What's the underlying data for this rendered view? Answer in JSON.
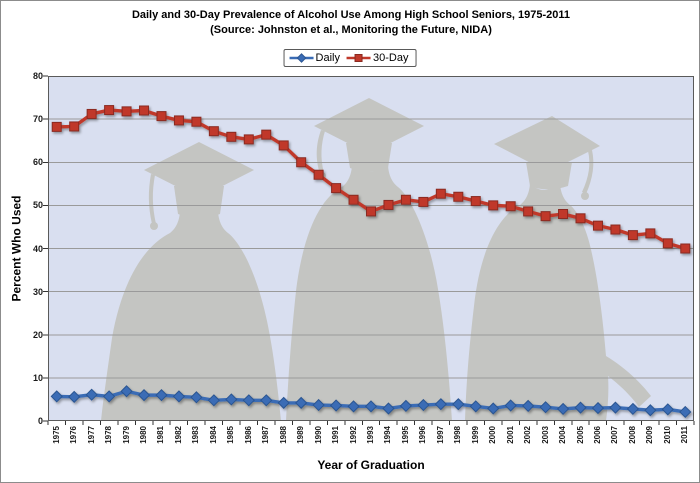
{
  "title": {
    "line1": "Daily and 30-Day Prevalence of Alcohol Use Among High School Seniors, 1975-2011",
    "line2": "(Source:  Johnston et al., Monitoring the Future, NIDA)"
  },
  "colors": {
    "plot_background": "#d9dff0",
    "silhouette": "#c4c5c2",
    "gridline": "#9a9a9a",
    "plot_border": "#5a5a5a",
    "tick": "#333333",
    "daily_line": "#3a6cb5",
    "daily_marker_edge": "#2b5591",
    "thirty_day_line": "#c0392b",
    "thirty_day_marker_edge": "#8a2a20"
  },
  "chart_data": {
    "type": "line",
    "title": "Daily and 30-Day Prevalence of Alcohol Use Among High School Seniors, 1975-2011",
    "subtitle": "(Source:  Johnston et al., Monitoring the Future, NIDA)",
    "xlabel": "Year of Graduation",
    "ylabel": "Percent Who Used",
    "ylim": [
      0,
      80
    ],
    "yticks": [
      0,
      10,
      20,
      30,
      40,
      50,
      60,
      70,
      80
    ],
    "grid": true,
    "legend_position": "top",
    "categories": [
      1975,
      1976,
      1977,
      1978,
      1979,
      1980,
      1981,
      1982,
      1983,
      1984,
      1985,
      1986,
      1987,
      1988,
      1989,
      1990,
      1991,
      1992,
      1993,
      1994,
      1995,
      1996,
      1997,
      1998,
      1999,
      2000,
      2001,
      2002,
      2003,
      2004,
      2005,
      2006,
      2007,
      2008,
      2009,
      2010,
      2011
    ],
    "series": [
      {
        "name": "Daily",
        "marker": "diamond",
        "color": "#3a6cb5",
        "edge": "#2b5591",
        "values": [
          5.7,
          5.6,
          6.1,
          5.7,
          6.9,
          6.0,
          6.0,
          5.7,
          5.5,
          4.8,
          5.0,
          4.8,
          4.8,
          4.2,
          4.2,
          3.7,
          3.6,
          3.4,
          3.4,
          2.9,
          3.5,
          3.7,
          3.9,
          3.9,
          3.4,
          2.9,
          3.6,
          3.5,
          3.2,
          2.8,
          3.1,
          3.0,
          3.1,
          2.8,
          2.5,
          2.7,
          2.1
        ]
      },
      {
        "name": "30-Day",
        "marker": "square",
        "color": "#c0392b",
        "edge": "#8a2a20",
        "values": [
          68.2,
          68.3,
          71.2,
          72.1,
          71.8,
          72.0,
          70.7,
          69.7,
          69.4,
          67.2,
          65.9,
          65.3,
          66.4,
          63.9,
          60.0,
          57.1,
          54.0,
          51.3,
          48.6,
          50.1,
          51.3,
          50.8,
          52.7,
          52.0,
          51.0,
          50.0,
          49.8,
          48.6,
          47.5,
          48.0,
          47.0,
          45.3,
          44.4,
          43.1,
          43.5,
          41.2,
          40.0
        ]
      }
    ]
  }
}
